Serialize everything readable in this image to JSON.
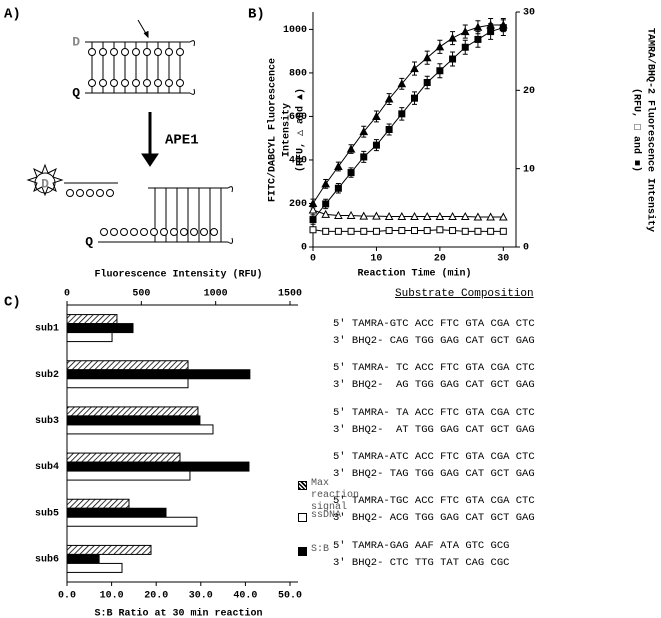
{
  "panel_labels": [
    "A)",
    "B)",
    "C)"
  ],
  "diagram": {
    "donor": "D",
    "quencher": "Q",
    "enzyme": "APE1",
    "released_donor": "D",
    "remaining_quencher": "Q"
  },
  "chart_data": [
    {
      "type": "line",
      "xlabel": "Reaction Time (min)",
      "ylabel": [
        "FITC/DABCYL Fluorescence",
        "Intensity",
        "(RFU, △ and ▲)"
      ],
      "y2label": [
        "TAMRA/BHQ-2 Fluorescence Intensity",
        "(RFU, □ and ■)"
      ],
      "xlim": [
        0,
        32
      ],
      "xticks": [
        0,
        10,
        20,
        30
      ],
      "ylim": [
        0,
        1080
      ],
      "yticks": [
        0,
        200,
        400,
        600,
        800,
        1000
      ],
      "y2lim": [
        0,
        30
      ],
      "y2ticks": [
        0,
        10,
        20,
        30
      ],
      "x": [
        0,
        2,
        4,
        6,
        8,
        10,
        12,
        14,
        16,
        18,
        20,
        22,
        24,
        26,
        28,
        30
      ],
      "series": [
        {
          "marker": "triangle",
          "filled": true,
          "color": "#000000",
          "values": [
            200,
            290,
            370,
            450,
            530,
            600,
            680,
            750,
            820,
            870,
            920,
            960,
            990,
            1010,
            1020,
            1020
          ],
          "errors": [
            20,
            20,
            20,
            20,
            25,
            25,
            25,
            25,
            30,
            30,
            30,
            30,
            30,
            30,
            30,
            30
          ]
        },
        {
          "marker": "triangle",
          "filled": false,
          "color": "#000000",
          "values": [
            170,
            150,
            145,
            145,
            142,
            142,
            140,
            140,
            140,
            140,
            140,
            140,
            140,
            138,
            138,
            138
          ]
        },
        {
          "marker": "square",
          "filled": true,
          "color": "#000000",
          "axis": "y2",
          "values": [
            3.5,
            5.5,
            7.5,
            9.5,
            11.5,
            13,
            15,
            17,
            19,
            21,
            22.5,
            24,
            25.5,
            26.5,
            27.5,
            28
          ],
          "errors": [
            0.6,
            0.6,
            0.6,
            0.6,
            0.7,
            0.7,
            0.7,
            0.8,
            0.8,
            0.8,
            0.9,
            0.9,
            0.9,
            1,
            1,
            1
          ]
        },
        {
          "marker": "square",
          "filled": false,
          "color": "#000000",
          "axis": "y2",
          "values": [
            2.2,
            2.0,
            2.0,
            2.0,
            2.0,
            2.0,
            2.1,
            2.1,
            2.1,
            2.1,
            2.2,
            2.1,
            2.0,
            2.0,
            2.0,
            2.0
          ]
        }
      ]
    },
    {
      "type": "hbar",
      "x2label": "Fluorescence Intensity (RFU)",
      "xlabel": "S:B Ratio at 30 min reaction",
      "x2lim": [
        0,
        1500
      ],
      "x2ticks": [
        0,
        500,
        1000,
        1500
      ],
      "xlim": [
        0,
        50
      ],
      "xticks": [
        {
          "value": 0,
          "label": "0.0"
        },
        {
          "value": 10,
          "label": "10.0"
        },
        {
          "value": 20,
          "label": "20.0"
        },
        {
          "value": 30,
          "label": "30.0"
        },
        {
          "value": 40,
          "label": "40.0"
        },
        {
          "value": 50,
          "label": "50.0"
        }
      ],
      "categories": [
        "sub1",
        "sub2",
        "sub3",
        "sub4",
        "sub5",
        "sub6"
      ],
      "series": [
        {
          "name": "Max reaction signal",
          "hatch": true,
          "color": "#000000",
          "axis": "x2",
          "values": [
            336,
            814,
            881,
            760,
            417,
            565
          ]
        },
        {
          "name": "S:B",
          "hatch": false,
          "color": "#000000",
          "values": [
            14.8,
            41.0,
            29.8,
            40.8,
            22.2,
            7.2
          ]
        },
        {
          "name": "ssDNA",
          "hatch": false,
          "color": "#ffffff",
          "axis": "x2",
          "values": [
            303,
            814,
            982,
            827,
            874,
            370
          ]
        }
      ],
      "legend_order": [
        0,
        2,
        1
      ]
    }
  ],
  "substrate": {
    "title": "Substrate Composition",
    "pairs": [
      [
        "5′ TAMRA-GTC ACC FTC GTA CGA CTC",
        "3′ BHQ2- CAG TGG GAG CAT GCT GAG"
      ],
      [
        "5′ TAMRA- TC ACC FTC GTA CGA CTC",
        "3′ BHQ2-  AG TGG GAG CAT GCT GAG"
      ],
      [
        "5′ TAMRA- TA ACC FTC GTA CGA CTC",
        "3′ BHQ2-  AT TGG GAG CAT GCT GAG"
      ],
      [
        "5′ TAMRA-ATC ACC FTC GTA CGA CTC",
        "3′ BHQ2- TAG TGG GAG CAT GCT GAG"
      ],
      [
        "5′ TAMRA-TGC ACC FTC GTA CGA CTC",
        "3′ BHQ2- ACG TGG GAG CAT GCT GAG"
      ],
      [
        "5′ TAMRA-GAG AAF ATA GTC GCG",
        "3′ BHQ2- CTC TTG TAT CAG CGC"
      ]
    ]
  }
}
